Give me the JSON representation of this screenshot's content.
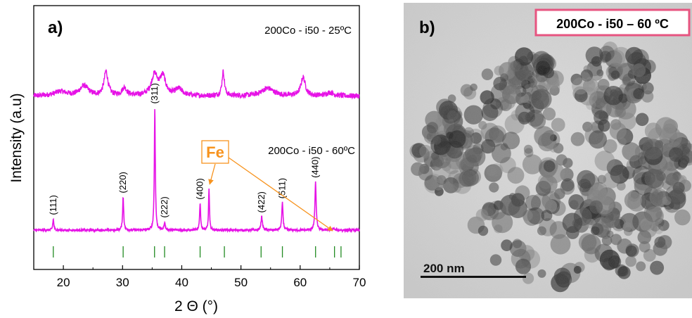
{
  "panel_a": {
    "label": "a)",
    "chart_data": {
      "type": "line",
      "xlabel": "2 Θ (°)",
      "ylabel": "Intensity (a.u)",
      "xlim": [
        15,
        70
      ],
      "xticks": [
        20,
        30,
        40,
        50,
        60,
        70
      ],
      "grid": false,
      "series": [
        {
          "name": "200Co - i50 - 25ºC",
          "color": "#e612e6",
          "offset": 0.6,
          "base": 0.05,
          "noise": 0.012,
          "peaks": [
            {
              "x": 19.5,
              "h": 0.02,
              "w": 2.5
            },
            {
              "x": 23.5,
              "h": 0.045,
              "w": 1.8
            },
            {
              "x": 27.2,
              "h": 0.11,
              "w": 0.8
            },
            {
              "x": 30.3,
              "h": 0.035,
              "w": 1.0
            },
            {
              "x": 35.4,
              "h": 0.095,
              "w": 1.3
            },
            {
              "x": 36.8,
              "h": 0.085,
              "w": 1.1
            },
            {
              "x": 39.5,
              "h": 0.03,
              "w": 1.5
            },
            {
              "x": 47.0,
              "h": 0.11,
              "w": 0.5
            },
            {
              "x": 54.5,
              "h": 0.035,
              "w": 2.5
            },
            {
              "x": 60.5,
              "h": 0.085,
              "w": 0.9
            },
            {
              "x": 65.0,
              "h": 0.015,
              "w": 1.5
            }
          ]
        },
        {
          "name": "200Co - i50 - 60ºC",
          "color": "#e612e6",
          "offset": 0.0,
          "base": 0.035,
          "noise": 0.005,
          "peaks": [
            {
              "x": 18.3,
              "h": 0.05,
              "w": 0.22
            },
            {
              "x": 30.1,
              "h": 0.15,
              "w": 0.22
            },
            {
              "x": 35.45,
              "h": 0.56,
              "w": 0.2
            },
            {
              "x": 37.1,
              "h": 0.035,
              "w": 0.25
            },
            {
              "x": 43.1,
              "h": 0.12,
              "w": 0.22
            },
            {
              "x": 44.6,
              "h": 0.19,
              "w": 0.18
            },
            {
              "x": 53.5,
              "h": 0.06,
              "w": 0.3
            },
            {
              "x": 57.0,
              "h": 0.125,
              "w": 0.25
            },
            {
              "x": 62.6,
              "h": 0.22,
              "w": 0.25
            },
            {
              "x": 65.6,
              "h": 0.008,
              "w": 0.3
            }
          ]
        }
      ],
      "reference_ticks": {
        "color": "#228b22",
        "x": [
          18.3,
          30.1,
          35.4,
          37.1,
          43.1,
          47.2,
          53.4,
          57.0,
          62.6,
          65.8,
          66.9
        ]
      },
      "peak_labels": [
        {
          "x": 18.3,
          "text": "(111)"
        },
        {
          "x": 30.1,
          "text": "(220)"
        },
        {
          "x": 35.45,
          "text": "(311)"
        },
        {
          "x": 37.1,
          "text": "(222)"
        },
        {
          "x": 43.1,
          "text": "(400)"
        },
        {
          "x": 53.5,
          "text": "(422)"
        },
        {
          "x": 57.0,
          "text": "(511)"
        },
        {
          "x": 62.6,
          "text": "(440)"
        }
      ],
      "annotations": {
        "fe_label": "Fe",
        "fe_color": "#f7931e",
        "fe_arrow_targets": [
          44.6,
          65.5
        ]
      }
    }
  },
  "panel_b": {
    "label": "b)",
    "title_box": "200Co - i50 – 60 ºC",
    "title_box_border": "#e75480",
    "scale_bar": "200 nm"
  }
}
